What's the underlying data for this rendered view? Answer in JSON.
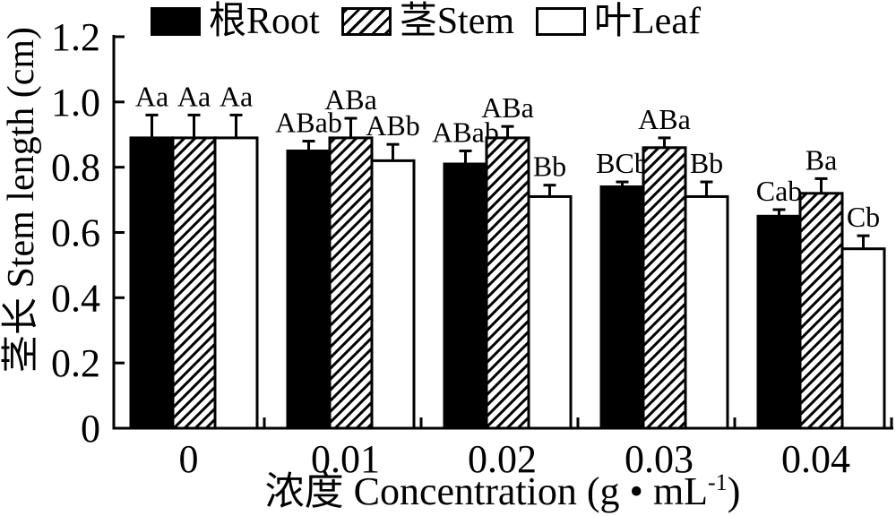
{
  "chart_data": {
    "type": "bar",
    "title": "",
    "categories": [
      "0",
      "0.01",
      "0.02",
      "0.03",
      "0.04"
    ],
    "series": [
      {
        "name": "根Root",
        "key": "root",
        "swatch": "solid-black",
        "values": [
          0.89,
          0.85,
          0.81,
          0.74,
          0.65
        ],
        "errors": [
          0.07,
          0.03,
          0.04,
          0.015,
          0.02
        ],
        "sig_labels": [
          "Aa",
          "ABab",
          "ABab",
          "BCb",
          "Cab"
        ]
      },
      {
        "name": "茎Stem",
        "key": "stem",
        "swatch": "diagonal-hatch",
        "values": [
          0.89,
          0.89,
          0.89,
          0.86,
          0.72
        ],
        "errors": [
          0.07,
          0.06,
          0.035,
          0.03,
          0.045
        ],
        "sig_labels": [
          "Aa",
          "ABa",
          "ABa",
          "ABa",
          "Ba"
        ]
      },
      {
        "name": "叶Leaf",
        "key": "leaf",
        "swatch": "open-white",
        "values": [
          0.89,
          0.82,
          0.71,
          0.71,
          0.55
        ],
        "errors": [
          0.07,
          0.05,
          0.035,
          0.045,
          0.04
        ],
        "sig_labels": [
          "Aa",
          "ABb",
          "Bb",
          "Bb",
          "Cb"
        ]
      }
    ],
    "xlabel": "浓度 Concentration (g • mL⁻¹)",
    "xlabel_parts": {
      "pre": "浓度 Concentration (g • mL",
      "sup": "-1",
      "post": ")"
    },
    "ylabel": "茎长 Stem length (cm)",
    "ylim": [
      0,
      1.2
    ],
    "yticks": [
      "0",
      "0.2",
      "0.4",
      "0.6",
      "0.8",
      "1.0",
      "1.2"
    ],
    "grid": false,
    "legend_position": "top",
    "error_bars": "upper, capped",
    "colors": {
      "bar_black": "#000000",
      "bar_white": "#ffffff",
      "stroke": "#000000",
      "background": "#ffffff"
    }
  }
}
